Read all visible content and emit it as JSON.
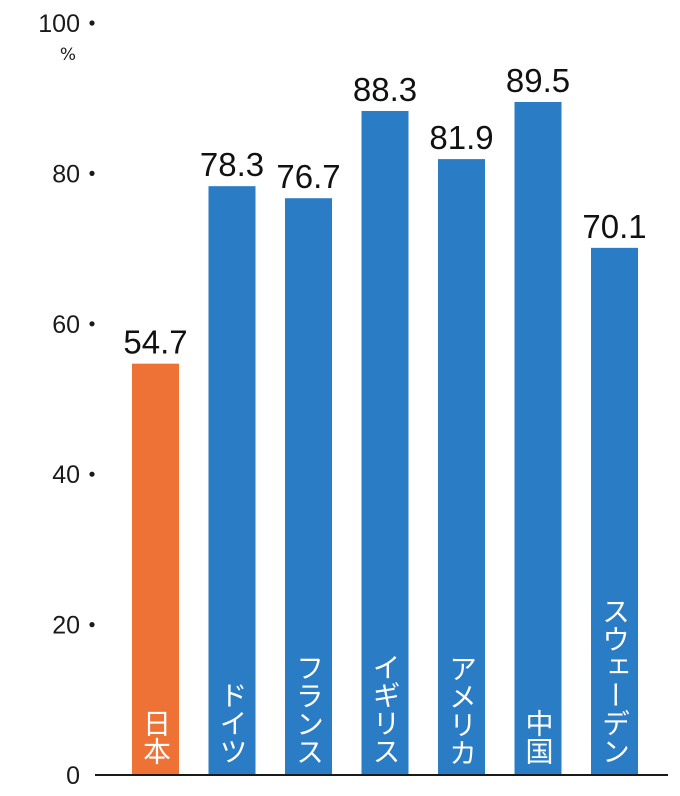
{
  "chart_data": {
    "type": "bar",
    "categories": [
      "日本",
      "ドイツ",
      "フランス",
      "イギリス",
      "アメリカ",
      "中国",
      "スウェーデン"
    ],
    "values": [
      54.7,
      78.3,
      76.7,
      88.3,
      81.9,
      89.5,
      70.1
    ],
    "value_labels": [
      "54.7",
      "78.3",
      "76.7",
      "88.3",
      "81.9",
      "89.5",
      "70.1"
    ],
    "y_unit": "%",
    "ylim": [
      0,
      100
    ],
    "y_ticks": [
      0,
      20,
      40,
      60,
      80,
      100
    ],
    "y_tick_labels": [
      "0",
      "20",
      "40",
      "60",
      "80",
      "100"
    ],
    "grid": false,
    "colors": {
      "highlight": "#ee7236",
      "default": "#2a7dc4"
    },
    "highlight_index": 0
  }
}
